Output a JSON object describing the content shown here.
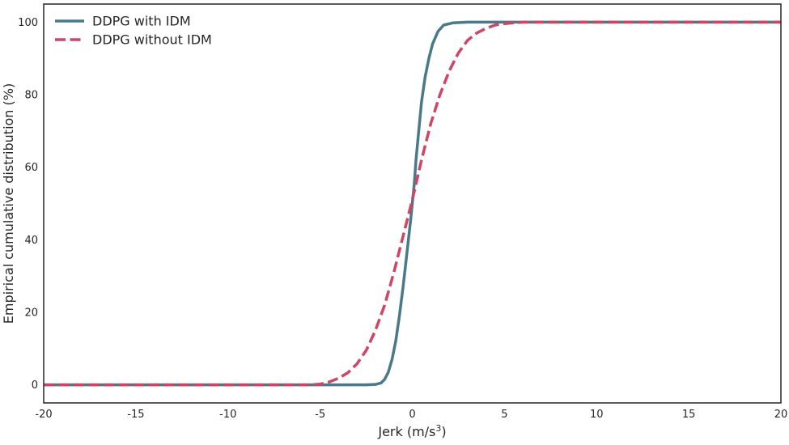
{
  "chart_data": {
    "type": "line",
    "title": "",
    "xlabel_main": "Jerk (m/s",
    "xlabel_sup": "3",
    "xlabel_end": ")",
    "ylabel": "Empirical cumulative distribution (%)",
    "xlim": [
      -20,
      20
    ],
    "ylim": [
      -5,
      105
    ],
    "xticks": [
      -20,
      -15,
      -10,
      -5,
      0,
      5,
      10,
      15,
      20
    ],
    "xtick_labels": [
      "-20",
      "-15",
      "-10",
      "-5",
      "0",
      "5",
      "10",
      "15",
      "20"
    ],
    "yticks": [
      0,
      20,
      40,
      60,
      80,
      100
    ],
    "ytick_labels": [
      "0",
      "20",
      "40",
      "60",
      "80",
      "100"
    ],
    "grid": false,
    "legend_position": "top-left",
    "series": [
      {
        "name": "DDPG with IDM",
        "color": "#4a7a8a",
        "dash": "solid",
        "points": [
          [
            -20,
            0
          ],
          [
            -2.5,
            0
          ],
          [
            -2,
            0.1
          ],
          [
            -1.7,
            0.5
          ],
          [
            -1.5,
            1.5
          ],
          [
            -1.3,
            3.5
          ],
          [
            -1.1,
            7
          ],
          [
            -0.9,
            12
          ],
          [
            -0.7,
            19
          ],
          [
            -0.5,
            27
          ],
          [
            -0.3,
            36
          ],
          [
            -0.1,
            45
          ],
          [
            0,
            50
          ],
          [
            0.1,
            55
          ],
          [
            0.2,
            62
          ],
          [
            0.35,
            70
          ],
          [
            0.5,
            78
          ],
          [
            0.7,
            85
          ],
          [
            0.9,
            90
          ],
          [
            1.1,
            94
          ],
          [
            1.4,
            97.5
          ],
          [
            1.7,
            99.2
          ],
          [
            2.2,
            99.8
          ],
          [
            3,
            100
          ],
          [
            20,
            100
          ]
        ]
      },
      {
        "name": "DDPG without IDM",
        "color": "#d04464",
        "dash": "dashed",
        "points": [
          [
            -20,
            0
          ],
          [
            -5.5,
            0
          ],
          [
            -5,
            0.2
          ],
          [
            -4.5,
            0.8
          ],
          [
            -4,
            1.8
          ],
          [
            -3.5,
            3.3
          ],
          [
            -3,
            5.8
          ],
          [
            -2.5,
            9.5
          ],
          [
            -2,
            15
          ],
          [
            -1.5,
            22
          ],
          [
            -1,
            31
          ],
          [
            -0.5,
            41
          ],
          [
            0,
            51
          ],
          [
            0.5,
            62
          ],
          [
            1,
            72
          ],
          [
            1.5,
            80
          ],
          [
            2,
            86.5
          ],
          [
            2.5,
            91.5
          ],
          [
            3,
            95
          ],
          [
            3.5,
            97
          ],
          [
            4,
            98.3
          ],
          [
            4.5,
            99.2
          ],
          [
            5,
            99.6
          ],
          [
            6,
            100
          ],
          [
            20,
            100
          ]
        ]
      }
    ]
  }
}
